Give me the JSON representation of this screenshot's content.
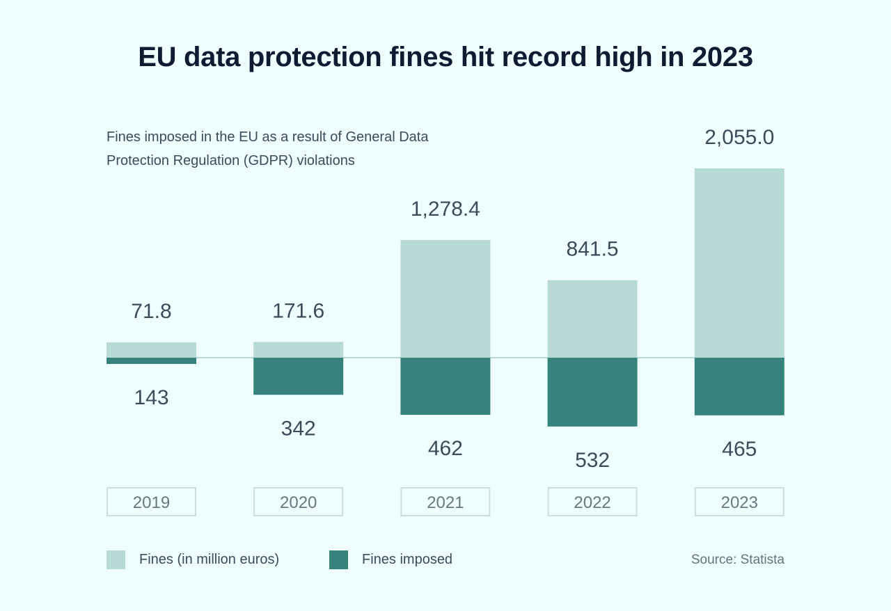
{
  "chart_data": {
    "type": "bar",
    "title": "EU data protection fines hit record high in 2023",
    "subtitle": "Fines imposed in the EU as a result of General Data Protection Regulation (GDPR) violations",
    "categories": [
      "2019",
      "2020",
      "2021",
      "2022",
      "2023"
    ],
    "series": [
      {
        "name": "Fines (in million euros)",
        "values": [
          71.8,
          171.6,
          1278.4,
          841.5,
          2055.0
        ],
        "labels": [
          "71.8",
          "171.6",
          "1,278.4",
          "841.5",
          "2,055.0"
        ],
        "color": "#b8dad6",
        "direction": "up"
      },
      {
        "name": "Fines imposed",
        "values": [
          143,
          342,
          462,
          532,
          465
        ],
        "labels": [
          "143",
          "342",
          "462",
          "532",
          "465"
        ],
        "color": "#35837c",
        "direction": "down"
      }
    ],
    "source": "Source: Statista",
    "grid": false,
    "legend": "bottom-left"
  }
}
